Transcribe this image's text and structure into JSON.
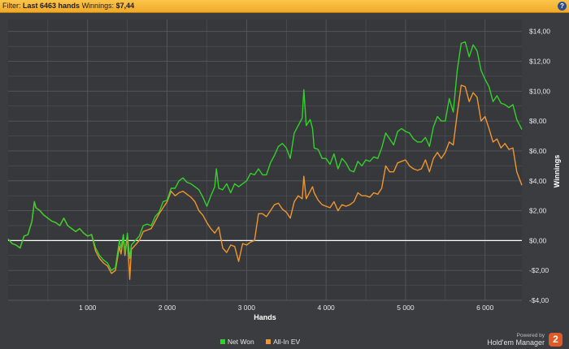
{
  "filter_bar": {
    "filter_label": "Filter:",
    "filter_value": "Last 6463 hands",
    "winnings_label": "Winnings:",
    "winnings_value": "$7,44",
    "help_glyph": "?"
  },
  "footer": {
    "powered_by": "Powered by",
    "product_name": "Hold'em Manager",
    "logo_glyph": "2"
  },
  "colors": {
    "net_won": "#33d12b",
    "all_in_ev": "#f0952f",
    "zero_line": "#ffffff",
    "grid": "#55585c",
    "plot_background": "#36383b"
  },
  "chart_data": {
    "type": "line",
    "title": "",
    "xlabel": "Hands",
    "ylabel": "Winnings",
    "xlim": [
      0,
      6463
    ],
    "ylim": [
      -4,
      14.8
    ],
    "x_ticks": [
      1000,
      2000,
      3000,
      4000,
      5000,
      6000
    ],
    "x_tick_labels": [
      "1 000",
      "2 000",
      "3 000",
      "4 000",
      "5 000",
      "6 000"
    ],
    "y_ticks": [
      -4,
      -2,
      0,
      2,
      4,
      6,
      8,
      10,
      12,
      14
    ],
    "y_tick_labels": [
      "-$4,00",
      "-$2,00",
      "$0,00",
      "$2,00",
      "$4,00",
      "$6,00",
      "$8,00",
      "$10,00",
      "$12,00",
      "$14,00"
    ],
    "grid": true,
    "legend_position": "bottom",
    "series": [
      {
        "name": "Net Won",
        "color": "#33d12b",
        "points": [
          [
            0,
            0.1
          ],
          [
            50,
            -0.2
          ],
          [
            100,
            -0.3
          ],
          [
            150,
            -0.5
          ],
          [
            200,
            0.3
          ],
          [
            250,
            0.4
          ],
          [
            300,
            1.3
          ],
          [
            330,
            2.6
          ],
          [
            350,
            2.2
          ],
          [
            400,
            2.0
          ],
          [
            450,
            1.7
          ],
          [
            500,
            1.5
          ],
          [
            550,
            1.3
          ],
          [
            600,
            1.2
          ],
          [
            650,
            1.0
          ],
          [
            700,
            1.5
          ],
          [
            750,
            1.0
          ],
          [
            800,
            0.8
          ],
          [
            850,
            0.6
          ],
          [
            900,
            0.8
          ],
          [
            950,
            0.5
          ],
          [
            1000,
            0.3
          ],
          [
            1050,
            0.4
          ],
          [
            1100,
            -0.5
          ],
          [
            1150,
            -1.0
          ],
          [
            1200,
            -1.3
          ],
          [
            1250,
            -1.5
          ],
          [
            1300,
            -2.0
          ],
          [
            1350,
            -1.8
          ],
          [
            1400,
            0.0
          ],
          [
            1420,
            -0.5
          ],
          [
            1450,
            0.4
          ],
          [
            1470,
            -0.8
          ],
          [
            1500,
            0.5
          ],
          [
            1530,
            -1.2
          ],
          [
            1550,
            -0.3
          ],
          [
            1600,
            0.0
          ],
          [
            1650,
            0.3
          ],
          [
            1700,
            1.0
          ],
          [
            1750,
            1.1
          ],
          [
            1800,
            1.0
          ],
          [
            1850,
            1.6
          ],
          [
            1900,
            1.9
          ],
          [
            1950,
            2.6
          ],
          [
            2000,
            2.7
          ],
          [
            2050,
            3.5
          ],
          [
            2100,
            3.5
          ],
          [
            2150,
            4.0
          ],
          [
            2200,
            4.2
          ],
          [
            2250,
            3.9
          ],
          [
            2300,
            3.8
          ],
          [
            2350,
            3.6
          ],
          [
            2400,
            3.4
          ],
          [
            2450,
            2.9
          ],
          [
            2500,
            2.3
          ],
          [
            2550,
            3.0
          ],
          [
            2600,
            3.6
          ],
          [
            2620,
            4.8
          ],
          [
            2650,
            3.5
          ],
          [
            2700,
            3.4
          ],
          [
            2750,
            3.8
          ],
          [
            2800,
            3.2
          ],
          [
            2850,
            3.8
          ],
          [
            2900,
            3.6
          ],
          [
            2950,
            3.8
          ],
          [
            3000,
            4.0
          ],
          [
            3050,
            4.5
          ],
          [
            3100,
            4.4
          ],
          [
            3150,
            4.8
          ],
          [
            3200,
            4.4
          ],
          [
            3250,
            4.4
          ],
          [
            3300,
            5.2
          ],
          [
            3350,
            5.7
          ],
          [
            3400,
            6.3
          ],
          [
            3450,
            6.5
          ],
          [
            3500,
            6.2
          ],
          [
            3550,
            5.5
          ],
          [
            3600,
            7.2
          ],
          [
            3650,
            7.7
          ],
          [
            3700,
            8.2
          ],
          [
            3720,
            10.1
          ],
          [
            3750,
            7.7
          ],
          [
            3800,
            8.1
          ],
          [
            3830,
            7.5
          ],
          [
            3850,
            6.2
          ],
          [
            3900,
            6.1
          ],
          [
            3950,
            5.5
          ],
          [
            4000,
            5.5
          ],
          [
            4050,
            5.1
          ],
          [
            4100,
            5.8
          ],
          [
            4150,
            4.8
          ],
          [
            4200,
            5.5
          ],
          [
            4250,
            5.2
          ],
          [
            4300,
            4.7
          ],
          [
            4350,
            4.6
          ],
          [
            4400,
            5.3
          ],
          [
            4450,
            5.0
          ],
          [
            4500,
            5.4
          ],
          [
            4550,
            5.3
          ],
          [
            4600,
            5.6
          ],
          [
            4650,
            5.5
          ],
          [
            4700,
            6.2
          ],
          [
            4750,
            7.2
          ],
          [
            4800,
            6.8
          ],
          [
            4850,
            6.4
          ],
          [
            4900,
            7.3
          ],
          [
            4950,
            7.5
          ],
          [
            5000,
            7.3
          ],
          [
            5050,
            7.2
          ],
          [
            5100,
            6.8
          ],
          [
            5150,
            6.6
          ],
          [
            5200,
            6.6
          ],
          [
            5250,
            6.9
          ],
          [
            5300,
            6.3
          ],
          [
            5350,
            7.6
          ],
          [
            5400,
            8.3
          ],
          [
            5450,
            8.0
          ],
          [
            5500,
            8.0
          ],
          [
            5550,
            9.5
          ],
          [
            5600,
            8.6
          ],
          [
            5650,
            11.4
          ],
          [
            5700,
            13.2
          ],
          [
            5750,
            13.3
          ],
          [
            5800,
            12.3
          ],
          [
            5850,
            13.1
          ],
          [
            5900,
            12.7
          ],
          [
            5950,
            11.4
          ],
          [
            6000,
            10.8
          ],
          [
            6050,
            10.3
          ],
          [
            6100,
            9.3
          ],
          [
            6150,
            9.7
          ],
          [
            6200,
            9.2
          ],
          [
            6250,
            9.1
          ],
          [
            6300,
            8.9
          ],
          [
            6350,
            9.1
          ],
          [
            6400,
            8.1
          ],
          [
            6463,
            7.44
          ]
        ]
      },
      {
        "name": "All-In EV",
        "color": "#f0952f",
        "points": [
          [
            0,
            0.1
          ],
          [
            50,
            -0.2
          ],
          [
            100,
            -0.3
          ],
          [
            150,
            -0.5
          ],
          [
            200,
            0.3
          ],
          [
            250,
            0.4
          ],
          [
            300,
            1.3
          ],
          [
            330,
            2.6
          ],
          [
            350,
            2.2
          ],
          [
            400,
            2.0
          ],
          [
            450,
            1.7
          ],
          [
            500,
            1.5
          ],
          [
            550,
            1.3
          ],
          [
            600,
            1.2
          ],
          [
            650,
            1.0
          ],
          [
            700,
            1.5
          ],
          [
            750,
            1.0
          ],
          [
            800,
            0.8
          ],
          [
            850,
            0.6
          ],
          [
            900,
            0.8
          ],
          [
            950,
            0.5
          ],
          [
            1000,
            0.3
          ],
          [
            1050,
            0.4
          ],
          [
            1100,
            -0.7
          ],
          [
            1150,
            -1.2
          ],
          [
            1200,
            -1.5
          ],
          [
            1250,
            -1.7
          ],
          [
            1300,
            -2.2
          ],
          [
            1350,
            -2.0
          ],
          [
            1400,
            -0.4
          ],
          [
            1420,
            -0.9
          ],
          [
            1450,
            0.2
          ],
          [
            1470,
            -1.0
          ],
          [
            1500,
            0.3
          ],
          [
            1530,
            -2.6
          ],
          [
            1550,
            -0.6
          ],
          [
            1600,
            -0.3
          ],
          [
            1650,
            0.0
          ],
          [
            1700,
            0.6
          ],
          [
            1750,
            0.7
          ],
          [
            1800,
            0.8
          ],
          [
            1850,
            1.3
          ],
          [
            1900,
            1.8
          ],
          [
            1950,
            2.2
          ],
          [
            2000,
            2.6
          ],
          [
            2050,
            3.3
          ],
          [
            2100,
            3.0
          ],
          [
            2150,
            3.2
          ],
          [
            2200,
            3.3
          ],
          [
            2250,
            3.1
          ],
          [
            2300,
            2.9
          ],
          [
            2350,
            2.6
          ],
          [
            2400,
            2.0
          ],
          [
            2450,
            1.7
          ],
          [
            2500,
            1.2
          ],
          [
            2550,
            0.8
          ],
          [
            2600,
            0.5
          ],
          [
            2650,
            0.9
          ],
          [
            2700,
            -0.5
          ],
          [
            2750,
            -0.8
          ],
          [
            2800,
            -0.3
          ],
          [
            2850,
            -0.4
          ],
          [
            2900,
            -1.4
          ],
          [
            2950,
            -0.2
          ],
          [
            3000,
            -0.3
          ],
          [
            3050,
            -0.1
          ],
          [
            3100,
            0.0
          ],
          [
            3150,
            1.8
          ],
          [
            3200,
            1.8
          ],
          [
            3250,
            1.6
          ],
          [
            3300,
            2.0
          ],
          [
            3350,
            2.4
          ],
          [
            3400,
            2.5
          ],
          [
            3450,
            2.1
          ],
          [
            3500,
            1.9
          ],
          [
            3550,
            1.5
          ],
          [
            3600,
            2.6
          ],
          [
            3650,
            3.0
          ],
          [
            3700,
            2.8
          ],
          [
            3720,
            4.3
          ],
          [
            3750,
            2.8
          ],
          [
            3800,
            3.3
          ],
          [
            3830,
            3.6
          ],
          [
            3850,
            3.2
          ],
          [
            3900,
            2.7
          ],
          [
            3950,
            2.4
          ],
          [
            4000,
            2.3
          ],
          [
            4050,
            2.2
          ],
          [
            4100,
            2.6
          ],
          [
            4150,
            2.0
          ],
          [
            4200,
            2.4
          ],
          [
            4250,
            2.3
          ],
          [
            4300,
            2.4
          ],
          [
            4350,
            2.6
          ],
          [
            4400,
            3.2
          ],
          [
            4450,
            3.0
          ],
          [
            4500,
            3.0
          ],
          [
            4550,
            2.9
          ],
          [
            4600,
            3.2
          ],
          [
            4650,
            3.1
          ],
          [
            4700,
            3.5
          ],
          [
            4750,
            5.0
          ],
          [
            4800,
            4.6
          ],
          [
            4850,
            4.6
          ],
          [
            4900,
            5.2
          ],
          [
            4950,
            5.3
          ],
          [
            5000,
            5.4
          ],
          [
            5050,
            5.0
          ],
          [
            5100,
            4.8
          ],
          [
            5150,
            4.7
          ],
          [
            5200,
            4.8
          ],
          [
            5250,
            5.4
          ],
          [
            5300,
            4.6
          ],
          [
            5350,
            5.5
          ],
          [
            5400,
            5.9
          ],
          [
            5450,
            5.5
          ],
          [
            5500,
            5.9
          ],
          [
            5550,
            6.6
          ],
          [
            5600,
            6.4
          ],
          [
            5650,
            8.5
          ],
          [
            5700,
            10.4
          ],
          [
            5750,
            10.3
          ],
          [
            5800,
            9.3
          ],
          [
            5850,
            9.9
          ],
          [
            5900,
            9.6
          ],
          [
            5950,
            8.0
          ],
          [
            6000,
            8.3
          ],
          [
            6050,
            7.5
          ],
          [
            6100,
            6.6
          ],
          [
            6150,
            6.8
          ],
          [
            6200,
            6.2
          ],
          [
            6250,
            6.5
          ],
          [
            6300,
            6.1
          ],
          [
            6350,
            6.2
          ],
          [
            6400,
            4.6
          ],
          [
            6463,
            3.7
          ]
        ]
      }
    ]
  }
}
